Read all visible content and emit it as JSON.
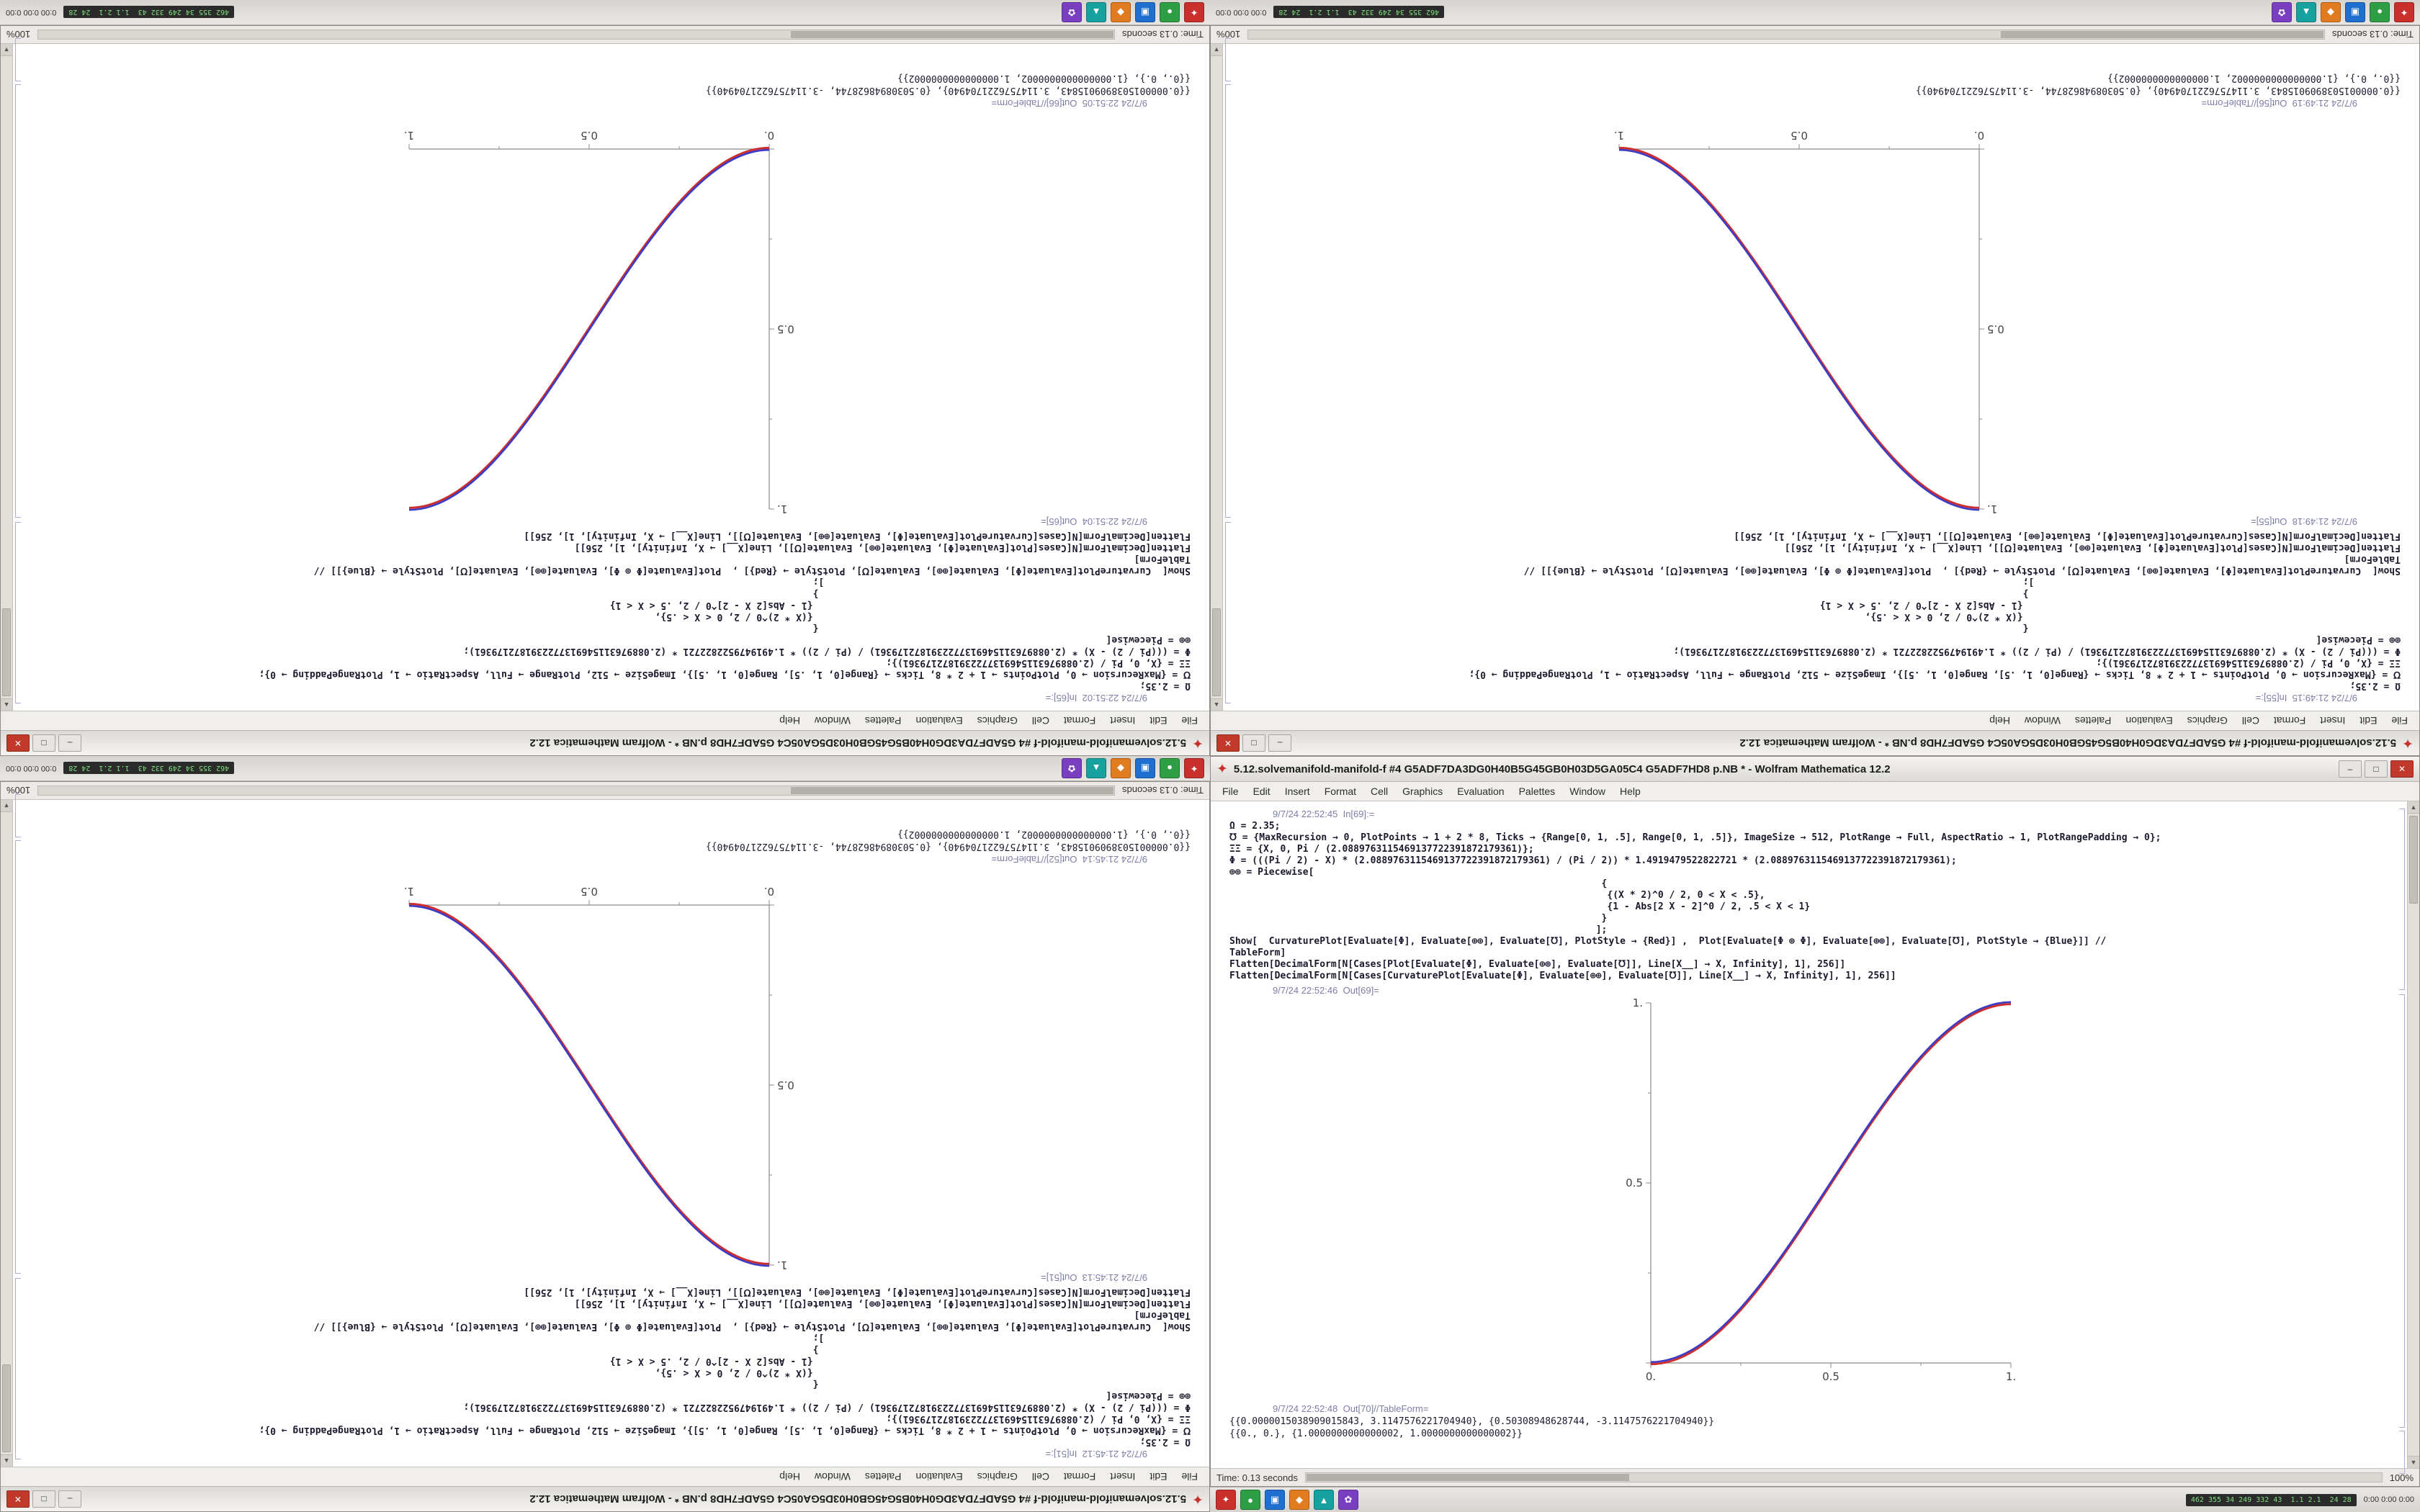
{
  "shared": {
    "title": "5.12.solvemanifold-manifold-f #4 G5ADF7DA3DG0H40B5G45GB0H03D5GA05C4 G5ADF7HD8 p.NB * - Wolfram Mathematica 12.2",
    "icon_glyph": "✦",
    "controls": {
      "min": "–",
      "max": "□",
      "close": "✕"
    },
    "menu": [
      "File",
      "Edit",
      "Insert",
      "Format",
      "Cell",
      "Graphics",
      "Evaluation",
      "Palettes",
      "Window",
      "Help"
    ],
    "status_left": "Time: 0.13 seconds",
    "status_right": "100%",
    "scroll": {
      "up": "▲",
      "down": "▼"
    }
  },
  "taskbar": {
    "icons": [
      {
        "name": "mathematica-taskbar-icon",
        "color": "#c9302c",
        "glyph": "✦"
      },
      {
        "name": "green-app-taskbar-icon",
        "color": "#2e9e44",
        "glyph": "●"
      },
      {
        "name": "blue-app-taskbar-icon",
        "color": "#1f6fd0",
        "glyph": "▣"
      },
      {
        "name": "orange-app-taskbar-icon",
        "color": "#e07b1f",
        "glyph": "◆"
      },
      {
        "name": "teal-app-taskbar-icon",
        "color": "#17a2a0",
        "glyph": "▲"
      },
      {
        "name": "purple-app-taskbar-icon",
        "color": "#7a3fc1",
        "glyph": "✿"
      }
    ],
    "monitor_text": "462 355 34 249 332 43  1.1 2.1  24 28",
    "clock": "0:00 0:00 0:00"
  },
  "chart_colors": {
    "red": "#cc2f2f",
    "blue": "#3b3bc8",
    "axis": "#8a8a8a",
    "tick_label": "#444444"
  },
  "code_lines_shared": [
    "Ω = 2.35;",
    "℧ = {MaxRecursion → 0, PlotPoints → 1 + 2 * 8, Ticks → {Range[0, 1, .5], Range[0, 1, .5]}, ImageSize → 512, PlotRange → Full, AspectRatio → 1, PlotRangePadding → 0};",
    "ΞΞ = {X, 0, Pi / (2.0889763115469137722391872179361)};",
    "Φ = (((Pi / 2) - X) * (2.0889763115469137722391872179361) / (Pi / 2)) * 1.4919479522822721 * (2.0889763115469137722391872179361);",
    "⊕⊕ = Piecewise[",
    "                                                                  {",
    "                                                                   {(X * 2)^0 / 2, 0 < X < .5},",
    "                                                                   {1 - Abs[2 X - 2]^0 / 2, .5 < X < 1}",
    "                                                                  }",
    "                                                                 ];",
    "Show[  CurvaturePlot[Evaluate[Φ], Evaluate[⊕⊕], Evaluate[℧], PlotStyle → {Red}] ,  Plot[Evaluate[Φ ⊕ Φ], Evaluate[⊕⊕], Evaluate[℧], PlotStyle → {Blue}]] //",
    "TableForm]",
    "Flatten[DecimalForm[N[Cases[Plot[Evaluate[Φ], Evaluate[⊕⊕], Evaluate[℧]], Line[X__] → X, Infinity], 1], 256]]",
    "Flatten[DecimalForm[N[Cases[CurvaturePlot[Evaluate[Φ], Evaluate[⊕⊕], Evaluate[℧]], Line[X__] → X, Infinity], 1], 256]]"
  ],
  "table_lines_shared": [
    "{{0.0000015038909015843, 3.1147576221704940}, {0.50308948628744, -3.1147576221704940}}",
    "{{0., 0.}, {1.0000000000000002, 1.0000000000000002}}"
  ],
  "panes": [
    {
      "id": "top-left",
      "in_label": "9/7/24 22:51:02  In[65]:=",
      "out_label": "9/7/24 22:51:04  Out[65]=",
      "table_label": "9/7/24 22:51:05  Out[66]//TableForm=",
      "plot": {
        "type": "line",
        "direction": "asc",
        "x_ticks": [
          "0.",
          "0.5",
          "1."
        ],
        "y_ticks": [
          "0.5",
          "1."
        ],
        "xlim": [
          0,
          1
        ],
        "ylim": [
          0,
          1
        ]
      }
    },
    {
      "id": "top-right",
      "in_label": "9/7/24 21:49:15  In[55]:=",
      "out_label": "9/7/24 21:49:18  Out[55]=",
      "table_label": "9/7/24 21:49:19  Out[56]//TableForm=",
      "plot": {
        "type": "line",
        "direction": "desc",
        "x_ticks": [
          "0.",
          "0.5",
          "1."
        ],
        "y_ticks": [
          "0.5",
          "1."
        ],
        "xlim": [
          0,
          1
        ],
        "ylim": [
          0,
          1
        ]
      }
    },
    {
      "id": "bottom-left",
      "in_label": "9/7/24 21:45:12  In[51]:=",
      "out_label": "9/7/24 21:45:13  Out[51]=",
      "table_label": "9/7/24 21:45:14  Out[52]//TableForm=",
      "plot": {
        "type": "line",
        "direction": "desc",
        "x_ticks": [
          "0.",
          "0.5",
          "1."
        ],
        "y_ticks": [
          "0.5",
          "1."
        ],
        "xlim": [
          0,
          1
        ],
        "ylim": [
          0,
          1
        ]
      }
    },
    {
      "id": "bottom-right",
      "in_label": "9/7/24 22:52:45  In[69]:=",
      "out_label": "9/7/24 22:52:46  Out[69]=",
      "table_label": "9/7/24 22:52:48  Out[70]//TableForm=",
      "plot": {
        "type": "line",
        "direction": "asc",
        "x_ticks": [
          "0.",
          "0.5",
          "1."
        ],
        "y_ticks": [
          "0.5",
          "1."
        ],
        "xlim": [
          0,
          1
        ],
        "ylim": [
          0,
          1
        ]
      }
    }
  ]
}
